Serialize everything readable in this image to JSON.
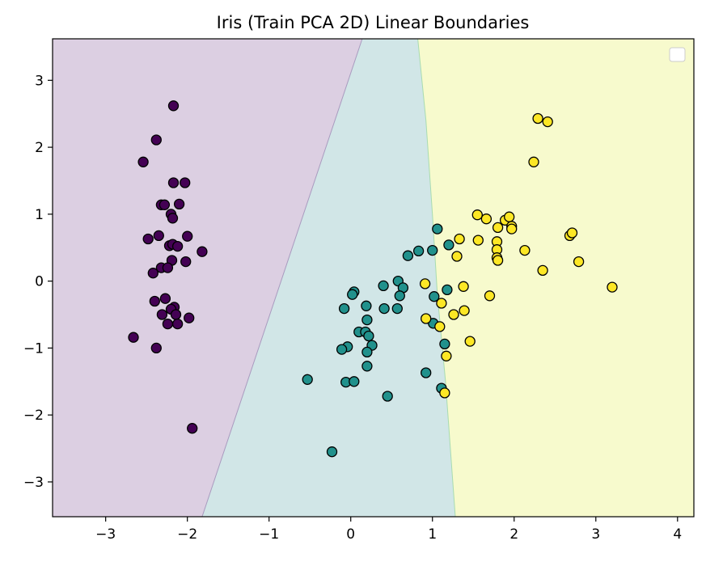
{
  "chart_data": {
    "type": "scatter",
    "title": "Iris (Train PCA 2D) Linear Boundaries",
    "xlabel": "",
    "ylabel": "",
    "xlim": [
      -3.65,
      4.2
    ],
    "ylim": [
      -3.52,
      3.62
    ],
    "x_ticks": [
      -3,
      -2,
      -1,
      0,
      1,
      2,
      3,
      4
    ],
    "y_ticks": [
      -3,
      -2,
      -1,
      0,
      1,
      2,
      3
    ],
    "grid": false,
    "legend": {
      "placement": "top-right",
      "entries": []
    },
    "colors": {
      "class_0": "#440154",
      "class_1": "#21918c",
      "class_2": "#fde725",
      "region_0": "#dccfe2",
      "region_1": "#d1e6e7",
      "region_2": "#f7facd",
      "marker_edge": "#000000"
    },
    "regions": {
      "boundary_0_1": [
        [
          -1.82,
          -3.52
        ],
        [
          0.14,
          3.62
        ]
      ],
      "boundary_1_2": [
        [
          1.28,
          -3.52
        ],
        [
          1.16,
          -1.5
        ],
        [
          1.06,
          -0.2
        ],
        [
          1.0,
          1.0
        ],
        [
          0.92,
          2.4
        ],
        [
          0.82,
          3.62
        ]
      ]
    },
    "series": [
      {
        "class": 0,
        "points": [
          [
            -2.17,
            2.62
          ],
          [
            -2.38,
            2.11
          ],
          [
            -2.54,
            1.78
          ],
          [
            -2.17,
            1.47
          ],
          [
            -2.03,
            1.47
          ],
          [
            -2.32,
            1.14
          ],
          [
            -2.28,
            1.14
          ],
          [
            -2.1,
            1.15
          ],
          [
            -2.2,
            1.0
          ],
          [
            -2.18,
            0.94
          ],
          [
            -2.48,
            0.63
          ],
          [
            -2.35,
            0.68
          ],
          [
            -2.0,
            0.67
          ],
          [
            -2.22,
            0.53
          ],
          [
            -2.18,
            0.55
          ],
          [
            -2.12,
            0.52
          ],
          [
            -1.82,
            0.44
          ],
          [
            -2.19,
            0.31
          ],
          [
            -2.02,
            0.29
          ],
          [
            -2.32,
            0.2
          ],
          [
            -2.24,
            0.2
          ],
          [
            -2.42,
            0.12
          ],
          [
            -2.27,
            -0.26
          ],
          [
            -2.4,
            -0.3
          ],
          [
            -2.16,
            -0.39
          ],
          [
            -2.2,
            -0.42
          ],
          [
            -2.31,
            -0.5
          ],
          [
            -2.14,
            -0.5
          ],
          [
            -1.98,
            -0.55
          ],
          [
            -2.24,
            -0.64
          ],
          [
            -2.12,
            -0.64
          ],
          [
            -2.66,
            -0.84
          ],
          [
            -2.38,
            -1.0
          ],
          [
            -1.94,
            -2.2
          ]
        ]
      },
      {
        "class": 1,
        "points": [
          [
            1.06,
            0.78
          ],
          [
            1.2,
            0.54
          ],
          [
            0.83,
            0.45
          ],
          [
            1.0,
            0.46
          ],
          [
            0.7,
            0.38
          ],
          [
            0.58,
            0.0
          ],
          [
            0.4,
            -0.07
          ],
          [
            0.64,
            -0.1
          ],
          [
            0.04,
            -0.16
          ],
          [
            0.02,
            -0.2
          ],
          [
            0.6,
            -0.22
          ],
          [
            1.02,
            -0.23
          ],
          [
            1.18,
            -0.13
          ],
          [
            0.19,
            -0.37
          ],
          [
            -0.08,
            -0.41
          ],
          [
            0.41,
            -0.41
          ],
          [
            0.57,
            -0.41
          ],
          [
            0.2,
            -0.58
          ],
          [
            1.01,
            -0.63
          ],
          [
            0.1,
            -0.76
          ],
          [
            0.18,
            -0.76
          ],
          [
            0.22,
            -0.82
          ],
          [
            0.26,
            -0.96
          ],
          [
            1.15,
            -0.94
          ],
          [
            -0.04,
            -0.98
          ],
          [
            -0.11,
            -1.02
          ],
          [
            0.2,
            -1.06
          ],
          [
            0.2,
            -1.27
          ],
          [
            0.92,
            -1.37
          ],
          [
            -0.53,
            -1.47
          ],
          [
            -0.06,
            -1.51
          ],
          [
            0.04,
            -1.5
          ],
          [
            1.11,
            -1.6
          ],
          [
            0.45,
            -1.72
          ],
          [
            -0.23,
            -2.55
          ]
        ]
      },
      {
        "class": 2,
        "points": [
          [
            2.29,
            2.43
          ],
          [
            2.41,
            2.38
          ],
          [
            2.24,
            1.78
          ],
          [
            1.55,
            0.99
          ],
          [
            1.66,
            0.93
          ],
          [
            1.89,
            0.91
          ],
          [
            1.94,
            0.96
          ],
          [
            1.97,
            0.82
          ],
          [
            1.97,
            0.78
          ],
          [
            1.8,
            0.8
          ],
          [
            2.68,
            0.68
          ],
          [
            2.71,
            0.72
          ],
          [
            1.33,
            0.63
          ],
          [
            1.56,
            0.61
          ],
          [
            1.79,
            0.59
          ],
          [
            2.13,
            0.46
          ],
          [
            1.79,
            0.47
          ],
          [
            1.3,
            0.37
          ],
          [
            1.79,
            0.35
          ],
          [
            1.8,
            0.31
          ],
          [
            2.79,
            0.29
          ],
          [
            2.35,
            0.16
          ],
          [
            3.2,
            -0.09
          ],
          [
            0.91,
            -0.04
          ],
          [
            1.38,
            -0.08
          ],
          [
            1.7,
            -0.22
          ],
          [
            1.11,
            -0.33
          ],
          [
            1.39,
            -0.44
          ],
          [
            1.26,
            -0.5
          ],
          [
            0.92,
            -0.56
          ],
          [
            1.09,
            -0.68
          ],
          [
            1.46,
            -0.9
          ],
          [
            1.17,
            -1.12
          ],
          [
            1.15,
            -1.67
          ]
        ]
      }
    ]
  }
}
